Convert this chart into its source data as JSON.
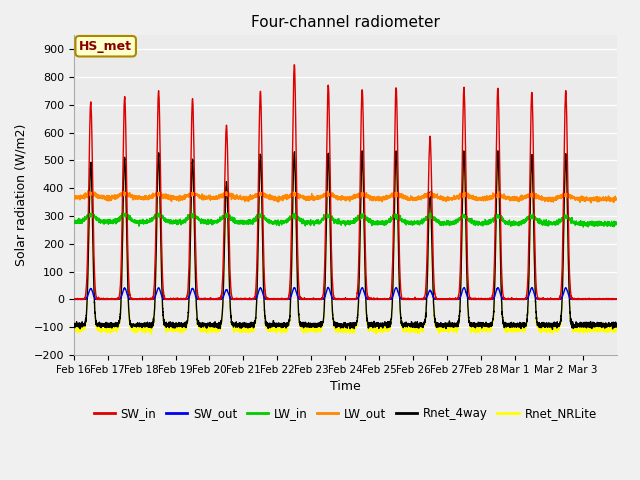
{
  "title": "Four-channel radiometer",
  "xlabel": "Time",
  "ylabel": "Solar radiation (W/m2)",
  "ylim": [
    -200,
    950
  ],
  "yticks": [
    -200,
    -100,
    0,
    100,
    200,
    300,
    400,
    500,
    600,
    700,
    800,
    900
  ],
  "annotation": "HS_met",
  "series": {
    "SW_in": {
      "color": "#dd0000",
      "lw": 1.0
    },
    "SW_out": {
      "color": "#0000ee",
      "lw": 1.0
    },
    "LW_in": {
      "color": "#00cc00",
      "lw": 1.0
    },
    "LW_out": {
      "color": "#ff8800",
      "lw": 1.0
    },
    "Rnet_4way": {
      "color": "#000000",
      "lw": 1.0
    },
    "Rnet_NRLite": {
      "color": "#ffff00",
      "lw": 1.0
    }
  },
  "n_days": 16,
  "sw_in_peaks": [
    710,
    730,
    750,
    720,
    625,
    748,
    845,
    770,
    755,
    760,
    585,
    760,
    760,
    745,
    750,
    0
  ],
  "tick_labels": [
    "Feb 16",
    "Feb 17",
    "Feb 18",
    "Feb 19",
    "Feb 20",
    "Feb 21",
    "Feb 22",
    "Feb 23",
    "Feb 24",
    "Feb 25",
    "Feb 26",
    "Feb 27",
    "Feb 28",
    "Mar 1",
    "Mar 2",
    "Mar 3"
  ]
}
